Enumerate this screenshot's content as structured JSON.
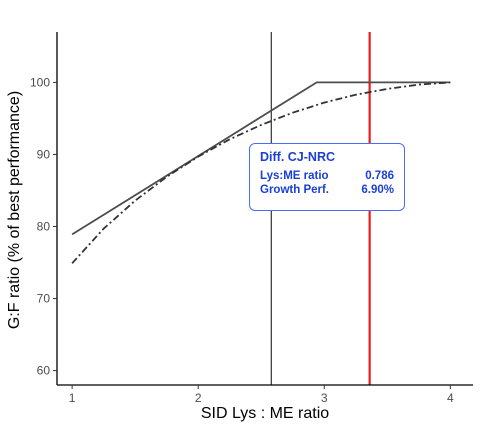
{
  "chart_data": {
    "type": "line",
    "title": "",
    "xlabel": "SID Lys : ME ratio",
    "ylabel": "G:F ratio (% of best performance)",
    "xlim": [
      0.88,
      4.18
    ],
    "ylim": [
      58,
      107
    ],
    "x_ticks": [
      "1",
      "2",
      "3",
      "4"
    ],
    "y_ticks": [
      "60",
      "70",
      "80",
      "90",
      "100"
    ],
    "grid": false,
    "legend": "none",
    "series": [
      {
        "style": "solid",
        "color": "#4d4d4d",
        "points": [
          [
            1.0,
            78.9
          ],
          [
            2.94,
            100.0
          ],
          [
            4.0,
            100.0
          ]
        ]
      },
      {
        "style": "dashdot",
        "color": "#333333",
        "points": [
          [
            1.0,
            74.9
          ],
          [
            1.25,
            79.7
          ],
          [
            1.5,
            83.6
          ],
          [
            1.75,
            86.9
          ],
          [
            2.0,
            89.7
          ],
          [
            2.25,
            92.1
          ],
          [
            2.5,
            94.1
          ],
          [
            2.75,
            95.8
          ],
          [
            3.0,
            97.2
          ],
          [
            3.25,
            98.3
          ],
          [
            3.5,
            99.1
          ],
          [
            3.75,
            99.7
          ],
          [
            4.0,
            100.0
          ]
        ]
      }
    ],
    "vlines": [
      {
        "x": 2.58,
        "color": "#333333"
      },
      {
        "x": 3.36,
        "color": "#ee1c1c"
      }
    ],
    "annotation": {
      "title": "Diff. CJ-NRC",
      "rows": [
        {
          "label": "Lys:ME ratio",
          "value": "0.786"
        },
        {
          "label": "Growth Perf.",
          "value": "6.90%"
        }
      ]
    }
  }
}
